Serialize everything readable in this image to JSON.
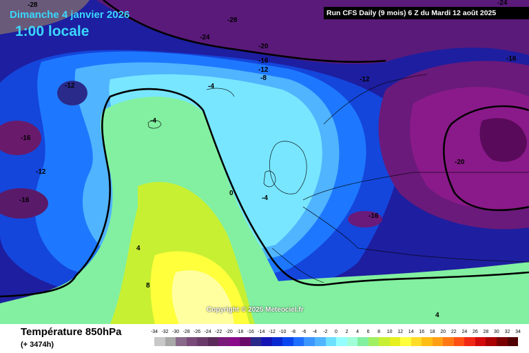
{
  "header": {
    "date": "Dimanche 4 janvier 2026",
    "hour": "1:00 locale",
    "run": "Run CFS Daily (9 mois) 6 Z du Mardi 12 août 2025"
  },
  "copyright": "Copyright © 2025 Meteociel.fr",
  "footer": {
    "field": "Température 850hPa",
    "lead": "(+ 3474h)"
  },
  "legend": {
    "ticks": [
      "-34",
      "-32",
      "-30",
      "-28",
      "-26",
      "-24",
      "-22",
      "-20",
      "-18",
      "-16",
      "-14",
      "-12",
      "-10",
      "-8",
      "-6",
      "-4",
      "-2",
      "0",
      "2",
      "4",
      "6",
      "8",
      "10",
      "12",
      "14",
      "16",
      "18",
      "20",
      "22",
      "24",
      "26",
      "28",
      "30",
      "32",
      "34"
    ],
    "colors": [
      "#c8c8c8",
      "#a8a8a8",
      "#8a6a8a",
      "#7a4a7a",
      "#6a3a6a",
      "#5a2a5a",
      "#7a1a7a",
      "#8a0a8a",
      "#6a0a6a",
      "#2a2a8a",
      "#1414b4",
      "#0a28d0",
      "#0a46f0",
      "#1e6eff",
      "#3c96ff",
      "#50b4ff",
      "#6ee0ff",
      "#96ffff",
      "#a0ffd8",
      "#82f0a0",
      "#a0f064",
      "#c8f032",
      "#e6f01e",
      "#ffff3c",
      "#ffdc28",
      "#ffbe14",
      "#ffa014",
      "#ff7814",
      "#ff5014",
      "#f02814",
      "#d20a0a",
      "#aa0000",
      "#7a0000",
      "#500000"
    ]
  },
  "contour_labels": [
    {
      "text": "-28"
    },
    {
      "text": "-28"
    },
    {
      "text": "-24"
    },
    {
      "text": "-24"
    },
    {
      "text": "-20"
    },
    {
      "text": "-16"
    },
    {
      "text": "-12"
    },
    {
      "text": "-8"
    },
    {
      "text": "-16"
    },
    {
      "text": "-12"
    },
    {
      "text": "-12"
    },
    {
      "text": "-4"
    },
    {
      "text": "-4"
    },
    {
      "text": "-16"
    },
    {
      "text": "-12"
    },
    {
      "text": "-20"
    },
    {
      "text": "0"
    },
    {
      "text": "-4"
    },
    {
      "text": "-16"
    },
    {
      "text": "-16"
    },
    {
      "text": "4"
    },
    {
      "text": "8"
    },
    {
      "text": "4"
    }
  ]
}
